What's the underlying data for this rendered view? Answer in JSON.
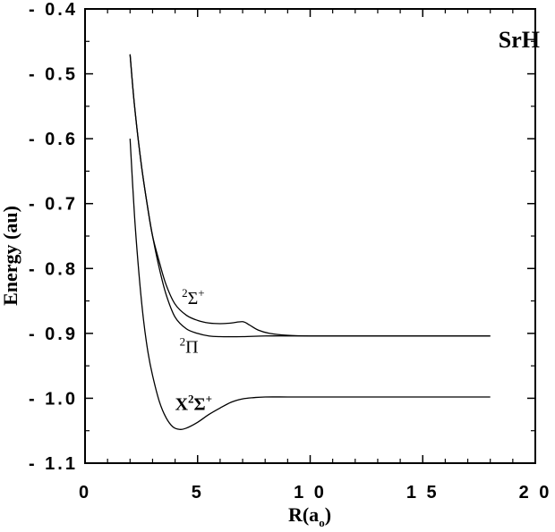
{
  "chart_data": {
    "type": "line",
    "title": "SrH",
    "xlabel": {
      "main": "R(a",
      "sub": "o",
      "close": ")"
    },
    "ylabel": "Energy  (au)",
    "xlim": [
      0,
      20
    ],
    "ylim": [
      -1.1,
      -0.4
    ],
    "x_ticks": [
      0,
      5,
      10,
      15,
      20
    ],
    "x_tick_labels": [
      "0",
      "5",
      "1 0",
      "1 5",
      "2 0"
    ],
    "y_ticks": [
      -0.4,
      -0.5,
      -0.6,
      -0.7,
      -0.8,
      -0.9,
      -1.0,
      -1.1
    ],
    "y_tick_labels": [
      "- 0.4",
      "- 0.5",
      "- 0.6",
      "- 0.7",
      "- 0.8",
      "- 0.9",
      "- 1.0",
      "- 1.1"
    ],
    "grid": false,
    "series": [
      {
        "name": "2Σ+",
        "label_parts": [
          {
            "text": "2",
            "role": "sup"
          },
          {
            "text": "Σ",
            "role": "base"
          },
          {
            "text": "+",
            "role": "sup"
          }
        ],
        "label_bold": false,
        "label_anchor": [
          4.3,
          -0.855
        ],
        "x": [
          2.0,
          2.2,
          2.5,
          2.8,
          3.0,
          3.3,
          3.6,
          4.0,
          4.5,
          5.0,
          5.5,
          6.0,
          6.5,
          7.0,
          7.3,
          7.7,
          8.2,
          9.0,
          10.0,
          12.0,
          14.0,
          16.0,
          18.0
        ],
        "y": [
          -0.47,
          -0.55,
          -0.64,
          -0.71,
          -0.75,
          -0.79,
          -0.825,
          -0.855,
          -0.872,
          -0.88,
          -0.884,
          -0.885,
          -0.884,
          -0.882,
          -0.887,
          -0.895,
          -0.9,
          -0.903,
          -0.904,
          -0.904,
          -0.904,
          -0.904,
          -0.904
        ]
      },
      {
        "name": "2Π",
        "label_parts": [
          {
            "text": "2",
            "role": "sup"
          },
          {
            "text": "Π",
            "role": "base"
          }
        ],
        "label_bold": false,
        "label_anchor": [
          4.2,
          -0.93
        ],
        "x": [
          2.0,
          2.2,
          2.5,
          2.8,
          3.0,
          3.3,
          3.6,
          4.0,
          4.5,
          5.0,
          5.5,
          6.0,
          7.0,
          8.0,
          9.0,
          10.0,
          12.0,
          14.0,
          16.0,
          18.0
        ],
        "y": [
          -0.47,
          -0.55,
          -0.64,
          -0.71,
          -0.75,
          -0.8,
          -0.84,
          -0.875,
          -0.893,
          -0.9,
          -0.904,
          -0.905,
          -0.905,
          -0.904,
          -0.904,
          -0.904,
          -0.904,
          -0.904,
          -0.904,
          -0.904
        ]
      },
      {
        "name": "X2Σ+",
        "label_parts": [
          {
            "text": "X",
            "role": "base"
          },
          {
            "text": "2",
            "role": "sup"
          },
          {
            "text": "Σ",
            "role": "base"
          },
          {
            "text": "+",
            "role": "sup"
          }
        ],
        "label_bold": true,
        "label_anchor": [
          4.0,
          -1.018
        ],
        "x": [
          2.0,
          2.2,
          2.4,
          2.6,
          2.8,
          3.0,
          3.3,
          3.6,
          3.9,
          4.2,
          4.5,
          5.0,
          5.5,
          6.0,
          6.5,
          7.0,
          7.5,
          8.0,
          9.0,
          10.0,
          12.0,
          14.0,
          16.0,
          18.0
        ],
        "y": [
          -0.6,
          -0.72,
          -0.81,
          -0.88,
          -0.93,
          -0.965,
          -1.005,
          -1.03,
          -1.044,
          -1.048,
          -1.046,
          -1.037,
          -1.025,
          -1.015,
          -1.006,
          -1.001,
          -0.999,
          -0.998,
          -0.998,
          -0.998,
          -0.998,
          -0.998,
          -0.998,
          -0.998
        ]
      }
    ]
  }
}
